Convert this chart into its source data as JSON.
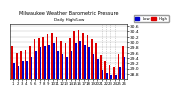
{
  "title": "Milwaukee Weather Barometric Pressure",
  "subtitle": "Daily High/Low",
  "legend_high": "High",
  "legend_low": "Low",
  "color_high": "#dd0000",
  "color_low": "#0000cc",
  "background_color": "#ffffff",
  "ylim": [
    28.6,
    30.7
  ],
  "yticks": [
    28.8,
    29.0,
    29.2,
    29.4,
    29.6,
    29.8,
    30.0,
    30.2,
    30.4,
    30.6
  ],
  "ylabel_fontsize": 3.2,
  "xlabel_fontsize": 2.8,
  "title_fontsize": 3.5,
  "days": [
    "1",
    "2",
    "3",
    "4",
    "5",
    "6",
    "7",
    "8",
    "9",
    "10",
    "11",
    "12",
    "13",
    "14",
    "15",
    "16",
    "17",
    "18",
    "19",
    "20",
    "21",
    "22",
    "23",
    "24",
    "25",
    "26"
  ],
  "highs": [
    29.85,
    29.6,
    29.65,
    29.7,
    29.85,
    30.1,
    30.15,
    30.2,
    30.3,
    30.35,
    30.2,
    30.05,
    29.95,
    30.15,
    30.4,
    30.45,
    30.35,
    30.25,
    30.1,
    29.95,
    29.5,
    29.3,
    29.15,
    29.05,
    29.55,
    29.85
  ],
  "lows": [
    29.2,
    29.1,
    29.3,
    29.3,
    29.45,
    29.65,
    29.8,
    29.85,
    29.9,
    29.95,
    29.65,
    29.55,
    29.45,
    29.65,
    29.95,
    30.05,
    29.9,
    29.8,
    29.55,
    29.35,
    28.95,
    28.85,
    28.75,
    28.75,
    29.05,
    29.45
  ],
  "grid_color": "#bbbbbb",
  "bar_width": 0.38,
  "dashed_cols": [
    20,
    21,
    22,
    23
  ],
  "top_legend_bar_blue": [
    0,
    0,
    1,
    1,
    0,
    0,
    0,
    0,
    0,
    0,
    0,
    0,
    0,
    0,
    0,
    0,
    0,
    0,
    0,
    0,
    0,
    0,
    0,
    0,
    0,
    0,
    0,
    0,
    0,
    0,
    0,
    0,
    0,
    0,
    0,
    0,
    0,
    0,
    0,
    0
  ],
  "top_legend_bar_red": [
    0,
    0,
    0,
    0,
    0,
    0,
    1,
    1,
    1,
    1,
    1,
    1,
    1,
    1,
    1,
    1,
    1,
    1,
    1,
    1,
    1,
    1,
    1,
    1,
    1,
    1,
    1,
    1,
    1,
    1,
    1,
    1,
    1,
    1,
    1,
    1,
    1,
    1,
    1,
    1
  ]
}
